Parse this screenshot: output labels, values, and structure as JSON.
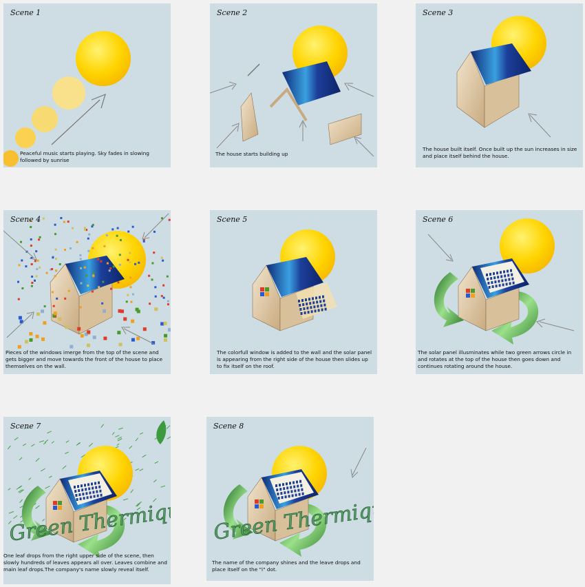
{
  "scenes": [
    {
      "title": "Scene 1",
      "caption": "Peaceful music starts playing. Sky fades in slowing followed by sunrise"
    },
    {
      "title": "Scene 2",
      "caption": "The house starts building up"
    },
    {
      "title": "Scene 3",
      "caption": "The house built itself. Once built up the sun increases in size and place itself behind the house."
    },
    {
      "title": "Scene 4",
      "caption": "Pieces  of the windows imerge from the top of the scene and gets bigger and move towards the front of the house to place themselves  on the wall."
    },
    {
      "title": "Scene 5",
      "caption": "The colorfull window is added to the wall and the solar panel is appearing from the right side of the house then slides up to fix itself on the roof."
    },
    {
      "title": "Scene 6",
      "caption": "The solar panel illusminates while two green arrows circle in and rotates at the top of the house then goes down and continues rotating around the house."
    },
    {
      "title": "Scene 7",
      "caption": "One leaf drops from the right upper side of the scene, then slowly hundreds of leaves appears all over. Leaves combine and main leaf drops.The company's name slowly reveal itself."
    },
    {
      "title": "Scene 8",
      "caption": "The name of the company shines and the leave drops and place itself on the \"i\" dot."
    }
  ],
  "brand": {
    "name": "Green Thermique"
  },
  "colors": {
    "sky": "#cddde3",
    "sun": "#ffd400",
    "roof": "#1c3f9a",
    "wall": "#e3cfaf",
    "arrow": "#3e9a3e"
  }
}
